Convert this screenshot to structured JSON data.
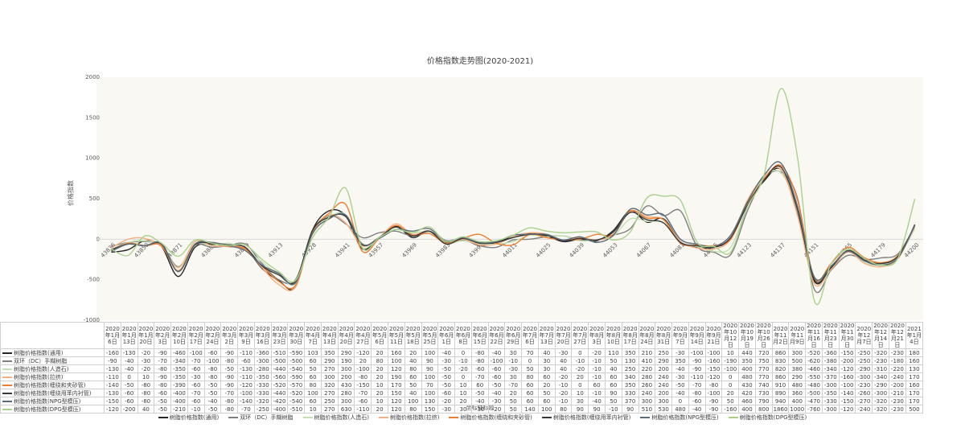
{
  "chart_data": {
    "type": "line",
    "title": "价格指数走势图(2020-2021)",
    "y_label": "价格指数",
    "x_label": "坐标轴标题",
    "ylim": [
      -1000,
      2000
    ],
    "yticks": [
      -1000,
      -500,
      0,
      500,
      1000,
      1500,
      2000
    ],
    "grid": false,
    "categories": [
      "2020年1月6日",
      "2020年1月13日",
      "2020年1月20日",
      "2020年2月3日",
      "2020年2月10日",
      "2020年2月17日",
      "2020年2月24日",
      "2020年3月2日",
      "2020年3月9日",
      "2020年3月16日",
      "2020年3月23日",
      "2020年3月30日",
      "2020年4月7日",
      "2020年4月13日",
      "2020年4月20日",
      "2020年4月27日",
      "2020年5月6日",
      "2020年5月11日",
      "2020年5月18日",
      "2020年5月25日",
      "2020年6月1日",
      "2020年6月8日",
      "2020年6月15日",
      "2020年6月22日",
      "2020年6月29日",
      "2020年7月6日",
      "2020年7月13日",
      "2020年7月20日",
      "2020年7月27日",
      "2020年8月3日",
      "2020年8月10日",
      "2020年8月17日",
      "2020年8月24日",
      "2020年8月31日",
      "2020年9月7日",
      "2020年9月14日",
      "2020年9月21日",
      "2020年10月12日",
      "2020年10月19日",
      "2020年10月26日",
      "2020年11月2日",
      "2020年11月9日",
      "2020年11月16日",
      "2020年11月23日",
      "2020年11月30日",
      "2020年12月7日",
      "2020年12月14日",
      "2020年12月21日",
      "2021年1月4日"
    ],
    "x_axis_labels": [
      43836,
      null,
      43850,
      null,
      43871,
      null,
      43885,
      null,
      43899,
      null,
      43913,
      null,
      43928,
      null,
      43941,
      null,
      43957,
      null,
      43969,
      null,
      43983,
      null,
      43997,
      null,
      44011,
      null,
      44025,
      null,
      44039,
      null,
      44053,
      null,
      44067,
      null,
      44081,
      null,
      44095,
      null,
      44123,
      null,
      44137,
      null,
      44151,
      null,
      44165,
      null,
      44179,
      null,
      44200
    ],
    "series": [
      {
        "name": "树脂价格指数(通用)",
        "color": "#262626",
        "values": [
          -160,
          -130,
          -20,
          -90,
          -460,
          -100,
          -60,
          -90,
          -110,
          -360,
          -510,
          -590,
          103,
          350,
          290,
          -120,
          20,
          160,
          20,
          100,
          -40,
          0,
          -80,
          -40,
          30,
          70,
          40,
          -30,
          0,
          -20,
          110,
          350,
          210,
          250,
          -30,
          -100,
          -100,
          10,
          440,
          720,
          860,
          300,
          -520,
          -360,
          -150,
          -250,
          -320,
          -230,
          180
        ]
      },
      {
        "name": "双环（DC）手糊树脂",
        "color": "#7f7f7f",
        "values": [
          -90,
          -40,
          -30,
          -70,
          -340,
          -70,
          -100,
          -80,
          -60,
          -300,
          -500,
          -500,
          60,
          290,
          190,
          20,
          80,
          100,
          40,
          90,
          -30,
          -10,
          -80,
          -100,
          -10,
          0,
          30,
          40,
          -10,
          -10,
          50,
          130,
          410,
          290,
          350,
          -90,
          -160,
          -190,
          350,
          750,
          830,
          500,
          -620,
          -380,
          -200,
          -250,
          -230,
          -180,
          160
        ]
      },
      {
        "name": "树脂价格指数(人造石)",
        "color": "#c5e0b4",
        "values": [
          -130,
          -40,
          -20,
          -80,
          -350,
          -60,
          -80,
          -50,
          -130,
          -280,
          -440,
          -540,
          50,
          270,
          300,
          -100,
          20,
          120,
          80,
          90,
          -50,
          -20,
          -60,
          -60,
          -30,
          50,
          30,
          40,
          -20,
          -10,
          40,
          250,
          220,
          200,
          -40,
          -90,
          -150,
          -100,
          400,
          770,
          820,
          380,
          -460,
          -340,
          -120,
          -290,
          -310,
          -220,
          130
        ]
      },
      {
        "name": "树脂价格指数(拉挤)",
        "color": "#f4b183",
        "values": [
          -110,
          0,
          10,
          -90,
          -350,
          -30,
          -80,
          -90,
          -110,
          -350,
          -560,
          -590,
          60,
          300,
          200,
          -80,
          20,
          190,
          60,
          100,
          -50,
          0,
          -70,
          -60,
          30,
          80,
          60,
          -20,
          20,
          -10,
          60,
          340,
          280,
          240,
          -30,
          -110,
          -120,
          0,
          480,
          770,
          860,
          290,
          -550,
          -370,
          -160,
          -300,
          -340,
          -240,
          170
        ]
      },
      {
        "name": "树脂价格指数(缠绕和夹砂管)",
        "color": "#ed7d31",
        "values": [
          -140,
          -50,
          -80,
          -80,
          -390,
          -60,
          -50,
          -90,
          -120,
          -330,
          -520,
          -570,
          80,
          320,
          430,
          -150,
          10,
          170,
          50,
          70,
          -50,
          10,
          60,
          -50,
          -70,
          60,
          20,
          -10,
          0,
          60,
          60,
          350,
          260,
          240,
          -50,
          -70,
          -80,
          0,
          430,
          740,
          910,
          480,
          -480,
          -300,
          -100,
          -230,
          -290,
          -200,
          160
        ]
      },
      {
        "name": "树脂价格指数(缠绕用苯内衬管)",
        "color": "#3a3a3a",
        "values": [
          -130,
          -60,
          -80,
          -60,
          -400,
          -70,
          -50,
          -70,
          -100,
          -330,
          -440,
          -520,
          100,
          270,
          280,
          -70,
          20,
          150,
          40,
          100,
          -60,
          10,
          -50,
          -40,
          20,
          60,
          50,
          -20,
          10,
          -10,
          90,
          330,
          240,
          200,
          -40,
          -80,
          -100,
          20,
          420,
          730,
          890,
          360,
          -500,
          -350,
          -140,
          -260,
          -300,
          -210,
          170
        ]
      },
      {
        "name": "树脂价格指数(NPG型模压)",
        "color": "#5b6b78",
        "values": [
          -150,
          -60,
          -80,
          -50,
          -400,
          -60,
          -40,
          -80,
          -140,
          -320,
          -420,
          -540,
          60,
          250,
          300,
          -60,
          10,
          120,
          100,
          130,
          -20,
          20,
          -40,
          -30,
          50,
          60,
          60,
          -10,
          30,
          -40,
          50,
          370,
          300,
          300,
          0,
          -60,
          -90,
          50,
          460,
          790,
          940,
          400,
          -470,
          -330,
          -150,
          -270,
          -320,
          -230,
          170
        ]
      },
      {
        "name": "树脂价格指数(DPG型模压)",
        "color": "#a9d18e",
        "values": [
          -120,
          -200,
          40,
          -50,
          -210,
          -10,
          -50,
          -80,
          -70,
          -250,
          -400,
          -510,
          10,
          270,
          630,
          -110,
          20,
          120,
          80,
          150,
          -30,
          30,
          -30,
          -20,
          50,
          140,
          100,
          80,
          90,
          90,
          -10,
          90,
          510,
          530,
          480,
          -40,
          -90,
          -160,
          400,
          800,
          1860,
          1000,
          -760,
          -300,
          -120,
          -240,
          -320,
          -230,
          500
        ]
      }
    ]
  }
}
